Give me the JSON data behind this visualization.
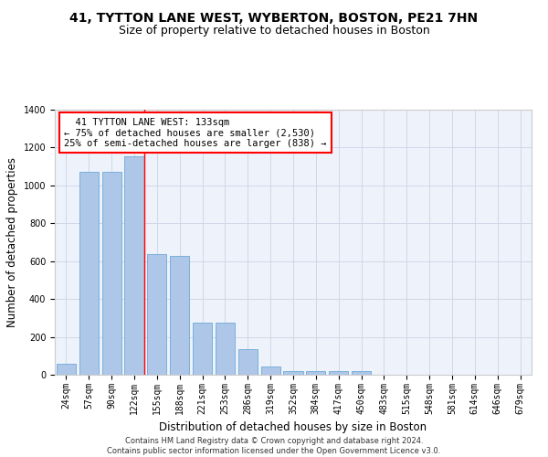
{
  "title": "41, TYTTON LANE WEST, WYBERTON, BOSTON, PE21 7HN",
  "subtitle": "Size of property relative to detached houses in Boston",
  "xlabel": "Distribution of detached houses by size in Boston",
  "ylabel": "Number of detached properties",
  "categories": [
    "24sqm",
    "57sqm",
    "90sqm",
    "122sqm",
    "155sqm",
    "188sqm",
    "221sqm",
    "253sqm",
    "286sqm",
    "319sqm",
    "352sqm",
    "384sqm",
    "417sqm",
    "450sqm",
    "483sqm",
    "515sqm",
    "548sqm",
    "581sqm",
    "614sqm",
    "646sqm",
    "679sqm"
  ],
  "values": [
    60,
    1070,
    1070,
    1155,
    635,
    630,
    275,
    275,
    135,
    45,
    20,
    20,
    20,
    20,
    0,
    0,
    0,
    0,
    0,
    0,
    0
  ],
  "bar_color": "#aec6e8",
  "bar_edge_color": "#5a9fd4",
  "grid_color": "#d0d8e8",
  "background_color": "#eef2fa",
  "vline_color": "red",
  "annotation_line1": "  41 TYTTON LANE WEST: 133sqm",
  "annotation_line2": "← 75% of detached houses are smaller (2,530)",
  "annotation_line3": "25% of semi-detached houses are larger (838) →",
  "annotation_box_color": "white",
  "annotation_box_edge_color": "red",
  "ylim": [
    0,
    1400
  ],
  "yticks": [
    0,
    200,
    400,
    600,
    800,
    1000,
    1200,
    1400
  ],
  "footer": "Contains HM Land Registry data © Crown copyright and database right 2024.\nContains public sector information licensed under the Open Government Licence v3.0.",
  "title_fontsize": 10,
  "subtitle_fontsize": 9,
  "axis_label_fontsize": 8.5,
  "tick_fontsize": 7,
  "annotation_fontsize": 7.5,
  "footer_fontsize": 6
}
